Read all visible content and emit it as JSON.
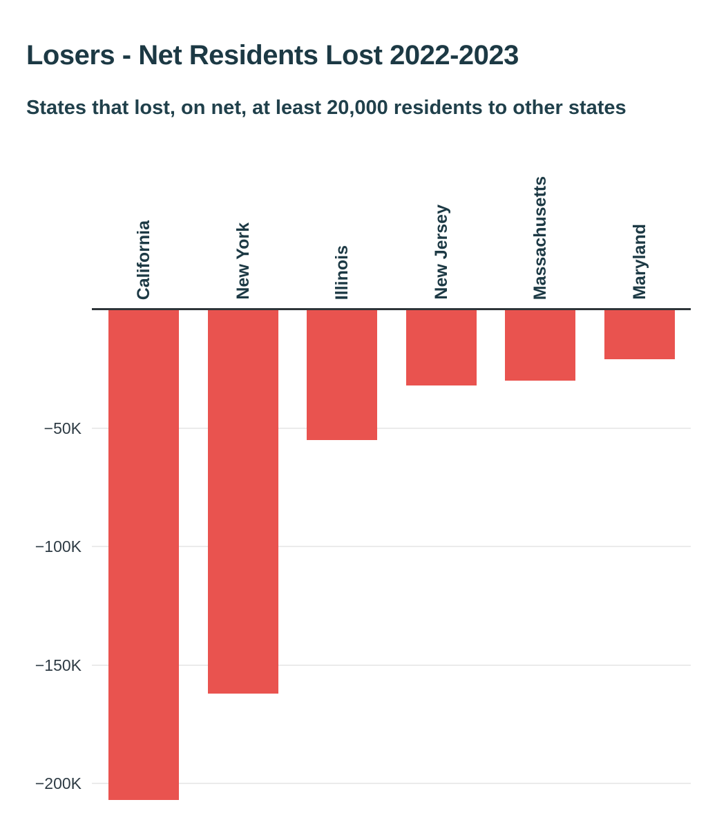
{
  "header": {
    "title": "Losers - Net Residents Lost 2022-2023",
    "subtitle": "States that lost, on net, at least 20,000 residents to other states"
  },
  "chart_data": {
    "type": "bar",
    "orientation": "vertical",
    "title": "Losers - Net Residents Lost 2022-2023",
    "subtitle": "States that lost, on net, at least 20,000 residents to other states",
    "categories": [
      "California",
      "New York",
      "Illinois",
      "New Jersey",
      "Massachusetts",
      "Maryland"
    ],
    "values": [
      -207000,
      -162000,
      -55000,
      -32000,
      -30000,
      -21000
    ],
    "xlabel": "",
    "ylabel": "",
    "ylim": [
      -215000,
      0
    ],
    "yticks": [
      -50000,
      -100000,
      -150000,
      -200000
    ],
    "ytick_labels": [
      "−50K",
      "−100K",
      "−150K",
      "−200K"
    ],
    "grid": true,
    "legend": false,
    "colors": {
      "bar": "#E9534F",
      "title_text": "#1C3944",
      "tick_text": "#2E3B44",
      "gridline": "#EBEBEB",
      "zero_axis": "#2E3539",
      "background": "#FFFFFF"
    }
  }
}
